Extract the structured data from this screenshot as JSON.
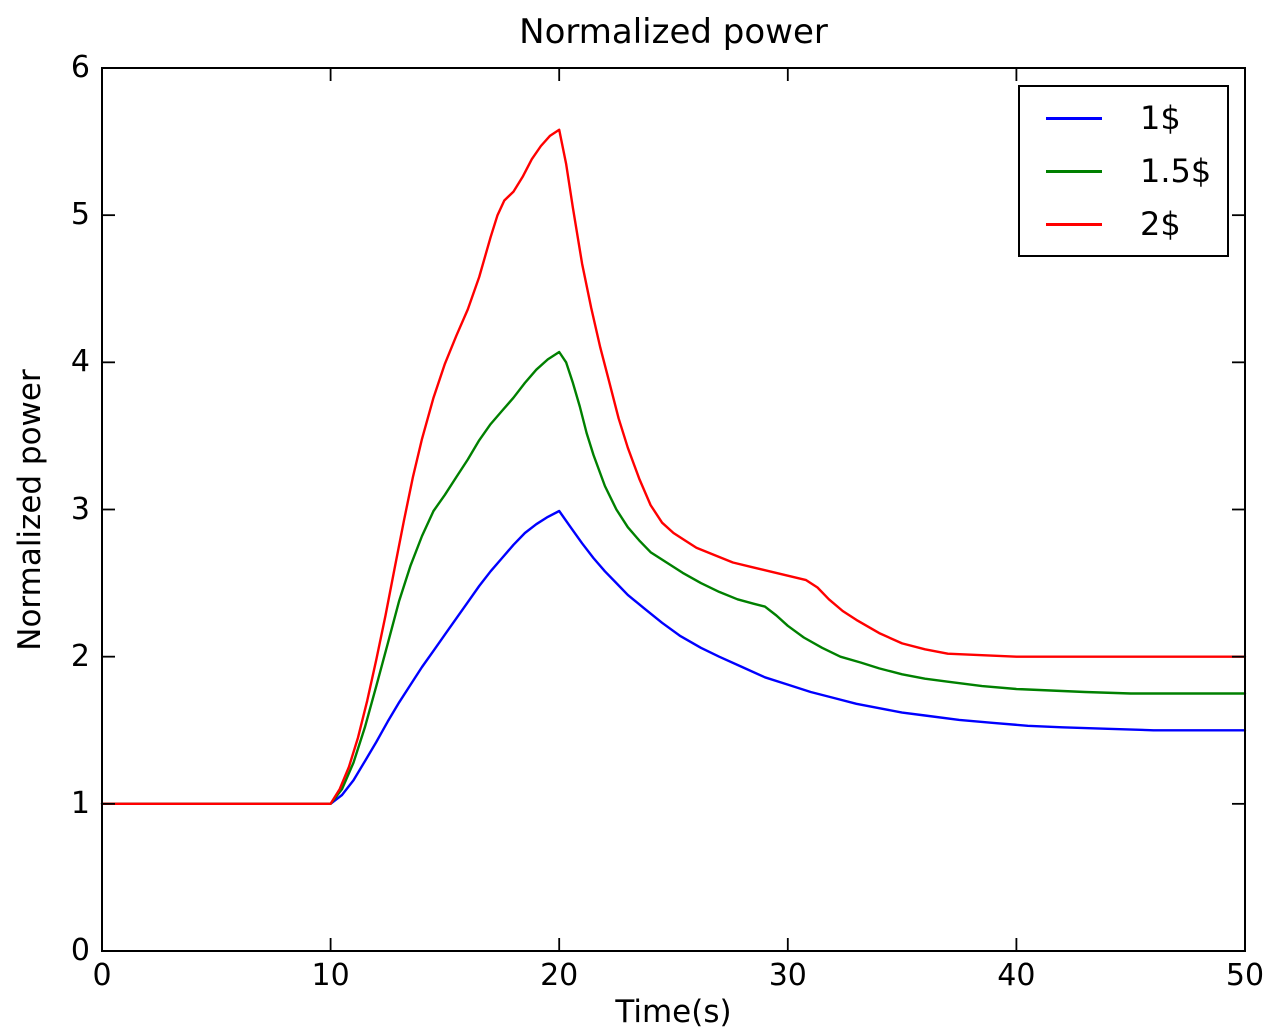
{
  "figure": {
    "background": "#ffffff",
    "spine_color": "#000000",
    "tick_color": "#000000"
  },
  "chart_data": {
    "type": "line",
    "title": "Normalized power",
    "xlabel": "Time(s)",
    "ylabel": "Normalized power",
    "xlim": [
      0,
      50
    ],
    "ylim": [
      0,
      6
    ],
    "xticks": [
      0,
      10,
      20,
      30,
      40,
      50
    ],
    "yticks": [
      0,
      1,
      2,
      3,
      4,
      5,
      6
    ],
    "grid": false,
    "legend_position": "upper right",
    "series": [
      {
        "name": "1$",
        "color": "#0000ff",
        "points": [
          [
            0,
            1
          ],
          [
            5,
            1
          ],
          [
            9.5,
            1
          ],
          [
            10,
            1
          ],
          [
            10.5,
            1.06
          ],
          [
            11,
            1.16
          ],
          [
            11.5,
            1.29
          ],
          [
            12,
            1.42
          ],
          [
            12.5,
            1.56
          ],
          [
            13,
            1.69
          ],
          [
            13.5,
            1.81
          ],
          [
            14,
            1.93
          ],
          [
            14.5,
            2.04
          ],
          [
            15,
            2.15
          ],
          [
            15.5,
            2.26
          ],
          [
            16,
            2.37
          ],
          [
            16.5,
            2.48
          ],
          [
            17,
            2.58
          ],
          [
            17.5,
            2.67
          ],
          [
            18,
            2.76
          ],
          [
            18.5,
            2.84
          ],
          [
            19,
            2.9
          ],
          [
            19.5,
            2.95
          ],
          [
            20,
            2.99
          ],
          [
            20.5,
            2.88
          ],
          [
            21,
            2.77
          ],
          [
            21.5,
            2.67
          ],
          [
            22,
            2.58
          ],
          [
            22.5,
            2.5
          ],
          [
            23,
            2.42
          ],
          [
            23.7,
            2.33
          ],
          [
            24.5,
            2.23
          ],
          [
            25.3,
            2.14
          ],
          [
            26.2,
            2.06
          ],
          [
            27,
            2
          ],
          [
            28,
            1.93
          ],
          [
            29,
            1.86
          ],
          [
            30,
            1.81
          ],
          [
            31,
            1.76
          ],
          [
            32,
            1.72
          ],
          [
            33,
            1.68
          ],
          [
            34,
            1.65
          ],
          [
            35,
            1.62
          ],
          [
            36,
            1.6
          ],
          [
            37.5,
            1.57
          ],
          [
            39,
            1.55
          ],
          [
            40.5,
            1.53
          ],
          [
            42,
            1.52
          ],
          [
            44,
            1.51
          ],
          [
            46,
            1.5
          ],
          [
            48,
            1.5
          ],
          [
            50,
            1.5
          ]
        ]
      },
      {
        "name": "1.5$",
        "color": "#008000",
        "points": [
          [
            0,
            1
          ],
          [
            5,
            1
          ],
          [
            9.5,
            1
          ],
          [
            10,
            1
          ],
          [
            10.5,
            1.1
          ],
          [
            11,
            1.28
          ],
          [
            11.5,
            1.52
          ],
          [
            12,
            1.8
          ],
          [
            12.5,
            2.09
          ],
          [
            13,
            2.38
          ],
          [
            13.5,
            2.62
          ],
          [
            14,
            2.82
          ],
          [
            14.5,
            2.99
          ],
          [
            15,
            3.1
          ],
          [
            15.5,
            3.22
          ],
          [
            16,
            3.34
          ],
          [
            16.5,
            3.47
          ],
          [
            17,
            3.58
          ],
          [
            17.5,
            3.67
          ],
          [
            18,
            3.76
          ],
          [
            18.5,
            3.86
          ],
          [
            19,
            3.95
          ],
          [
            19.5,
            4.02
          ],
          [
            20,
            4.07
          ],
          [
            20.3,
            4
          ],
          [
            20.6,
            3.86
          ],
          [
            20.9,
            3.7
          ],
          [
            21.2,
            3.52
          ],
          [
            21.5,
            3.37
          ],
          [
            22,
            3.16
          ],
          [
            22.5,
            3
          ],
          [
            23,
            2.88
          ],
          [
            23.5,
            2.79
          ],
          [
            24,
            2.71
          ],
          [
            24.7,
            2.64
          ],
          [
            25.4,
            2.57
          ],
          [
            26.2,
            2.5
          ],
          [
            27,
            2.44
          ],
          [
            27.8,
            2.39
          ],
          [
            28.5,
            2.36
          ],
          [
            29,
            2.34
          ],
          [
            29.5,
            2.28
          ],
          [
            30,
            2.21
          ],
          [
            30.7,
            2.13
          ],
          [
            31.5,
            2.06
          ],
          [
            32.3,
            2
          ],
          [
            33.2,
            1.96
          ],
          [
            34,
            1.92
          ],
          [
            35,
            1.88
          ],
          [
            36,
            1.85
          ],
          [
            37,
            1.83
          ],
          [
            38.5,
            1.8
          ],
          [
            40,
            1.78
          ],
          [
            41.5,
            1.77
          ],
          [
            43,
            1.76
          ],
          [
            45,
            1.75
          ],
          [
            47,
            1.75
          ],
          [
            50,
            1.75
          ]
        ]
      },
      {
        "name": "2$",
        "color": "#ff0000",
        "points": [
          [
            0,
            1
          ],
          [
            5,
            1
          ],
          [
            9.5,
            1
          ],
          [
            10,
            1
          ],
          [
            10.4,
            1.1
          ],
          [
            10.8,
            1.25
          ],
          [
            11.2,
            1.45
          ],
          [
            11.6,
            1.7
          ],
          [
            12,
            1.98
          ],
          [
            12.4,
            2.28
          ],
          [
            12.8,
            2.6
          ],
          [
            13.2,
            2.92
          ],
          [
            13.6,
            3.22
          ],
          [
            14,
            3.48
          ],
          [
            14.5,
            3.76
          ],
          [
            15,
            3.99
          ],
          [
            15.5,
            4.18
          ],
          [
            16,
            4.36
          ],
          [
            16.5,
            4.58
          ],
          [
            17,
            4.85
          ],
          [
            17.3,
            5
          ],
          [
            17.6,
            5.1
          ],
          [
            18,
            5.16
          ],
          [
            18.4,
            5.26
          ],
          [
            18.8,
            5.38
          ],
          [
            19.2,
            5.47
          ],
          [
            19.6,
            5.54
          ],
          [
            20,
            5.58
          ],
          [
            20.3,
            5.35
          ],
          [
            20.6,
            5.05
          ],
          [
            21,
            4.67
          ],
          [
            21.4,
            4.37
          ],
          [
            21.8,
            4.1
          ],
          [
            22.2,
            3.86
          ],
          [
            22.6,
            3.62
          ],
          [
            23,
            3.42
          ],
          [
            23.5,
            3.21
          ],
          [
            24,
            3.03
          ],
          [
            24.5,
            2.91
          ],
          [
            25,
            2.84
          ],
          [
            25.5,
            2.79
          ],
          [
            26,
            2.74
          ],
          [
            26.8,
            2.69
          ],
          [
            27.6,
            2.64
          ],
          [
            28.4,
            2.61
          ],
          [
            29.2,
            2.58
          ],
          [
            30,
            2.55
          ],
          [
            30.8,
            2.52
          ],
          [
            31.3,
            2.47
          ],
          [
            31.8,
            2.39
          ],
          [
            32.4,
            2.31
          ],
          [
            33,
            2.25
          ],
          [
            34,
            2.16
          ],
          [
            35,
            2.09
          ],
          [
            36,
            2.05
          ],
          [
            37,
            2.02
          ],
          [
            38.5,
            2.01
          ],
          [
            40,
            2
          ],
          [
            42,
            2
          ],
          [
            45,
            2
          ],
          [
            48,
            2
          ],
          [
            50,
            2
          ]
        ]
      }
    ]
  }
}
